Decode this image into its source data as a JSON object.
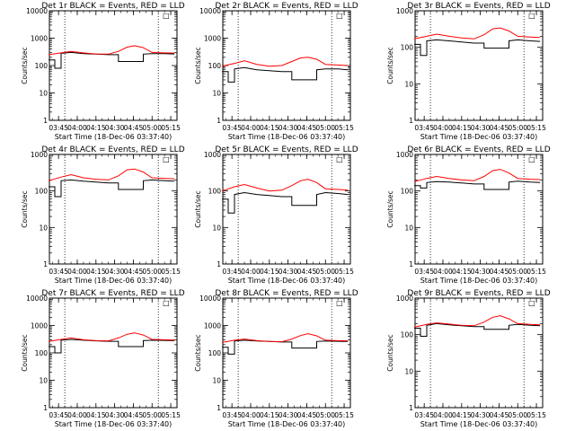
{
  "chart_data": [
    {
      "type": "line",
      "title": "Det 1r BLACK = Events, RED = LLD",
      "xlabel": "Start Time (18-Dec-06 03:37:40)",
      "ylabel": "Counts/sec",
      "y_scale": "log",
      "ylim": [
        1,
        10000
      ],
      "x_ticks": [
        "03:45",
        "04:00",
        "04:15",
        "04:30",
        "04:45",
        "05:00",
        "05:15"
      ],
      "y_ticks": [
        "1",
        "10",
        "100",
        "1000",
        "10000"
      ],
      "xlim": [
        "03:37:40",
        "05:20:00"
      ],
      "vlines": [
        "03:50",
        "05:05"
      ],
      "corner_mark": "□",
      "series": [
        {
          "name": "Events",
          "color": "#000000",
          "x": [
            "03:37",
            "03:42",
            "03:42",
            "03:47",
            "03:47",
            "03:55",
            "04:05",
            "04:15",
            "04:25",
            "04:33",
            "04:33",
            "04:45",
            "04:53",
            "04:53",
            "05:00",
            "05:10",
            "05:18"
          ],
          "values": [
            160,
            160,
            80,
            80,
            280,
            300,
            270,
            260,
            250,
            250,
            140,
            140,
            140,
            260,
            270,
            270,
            265
          ]
        },
        {
          "name": "LLD",
          "color": "#ff0000",
          "x": [
            "03:37",
            "03:47",
            "03:55",
            "04:05",
            "04:15",
            "04:25",
            "04:33",
            "04:40",
            "04:46",
            "04:53",
            "05:00",
            "05:10",
            "05:18"
          ],
          "values": [
            250,
            290,
            330,
            290,
            265,
            260,
            330,
            470,
            530,
            450,
            300,
            290,
            285
          ]
        }
      ]
    },
    {
      "type": "line",
      "title": "Det 2r BLACK = Events, RED = LLD",
      "xlabel": "Start Time (18-Dec-06 03:37:40)",
      "ylabel": "Counts/sec",
      "y_scale": "log",
      "ylim": [
        1,
        10000
      ],
      "x_ticks": [
        "03:45",
        "04:00",
        "04:15",
        "04:30",
        "04:45",
        "05:00",
        "05:15"
      ],
      "y_ticks": [
        "1",
        "10",
        "100",
        "1000",
        "10000"
      ],
      "xlim": [
        "03:37:40",
        "05:20:00"
      ],
      "vlines": [
        "03:50",
        "05:05"
      ],
      "corner_mark": "□",
      "series": [
        {
          "name": "Events",
          "color": "#000000",
          "x": [
            "03:37",
            "03:42",
            "03:42",
            "03:47",
            "03:47",
            "03:55",
            "04:05",
            "04:15",
            "04:25",
            "04:33",
            "04:33",
            "04:45",
            "04:53",
            "04:53",
            "05:00",
            "05:10",
            "05:18"
          ],
          "values": [
            60,
            60,
            25,
            25,
            75,
            85,
            70,
            65,
            60,
            60,
            30,
            30,
            30,
            70,
            75,
            75,
            70
          ]
        },
        {
          "name": "LLD",
          "color": "#ff0000",
          "x": [
            "03:37",
            "03:47",
            "03:55",
            "04:05",
            "04:15",
            "04:25",
            "04:33",
            "04:40",
            "04:46",
            "04:53",
            "05:00",
            "05:10",
            "05:18"
          ],
          "values": [
            95,
            120,
            150,
            110,
            95,
            100,
            140,
            190,
            200,
            170,
            110,
            105,
            100
          ]
        }
      ]
    },
    {
      "type": "line",
      "title": "Det 3r BLACK = Events, RED = LLD",
      "xlabel": "Start Time (18-Dec-06 03:37:40)",
      "ylabel": "Counts/sec",
      "y_scale": "log",
      "ylim": [
        1,
        1000
      ],
      "x_ticks": [
        "03:45",
        "04:00",
        "04:15",
        "04:30",
        "04:45",
        "05:00",
        "05:15"
      ],
      "y_ticks": [
        "1",
        "10",
        "100",
        "1000"
      ],
      "xlim": [
        "03:37:40",
        "05:20:00"
      ],
      "vlines": [
        "03:50",
        "05:05"
      ],
      "corner_mark": "□",
      "series": [
        {
          "name": "Events",
          "color": "#000000",
          "x": [
            "03:37",
            "03:42",
            "03:42",
            "03:47",
            "03:47",
            "03:55",
            "04:05",
            "04:15",
            "04:25",
            "04:33",
            "04:33",
            "04:45",
            "04:53",
            "04:53",
            "05:00",
            "05:10",
            "05:18"
          ],
          "values": [
            120,
            120,
            60,
            60,
            150,
            160,
            150,
            140,
            130,
            130,
            95,
            95,
            95,
            150,
            160,
            150,
            145
          ]
        },
        {
          "name": "LLD",
          "color": "#ff0000",
          "x": [
            "03:37",
            "03:47",
            "03:55",
            "04:05",
            "04:15",
            "04:25",
            "04:33",
            "04:40",
            "04:46",
            "04:53",
            "05:00",
            "05:10",
            "05:18"
          ],
          "values": [
            170,
            200,
            230,
            200,
            180,
            170,
            220,
            320,
            340,
            280,
            200,
            190,
            185
          ]
        }
      ]
    },
    {
      "type": "line",
      "title": "Det 4r BLACK = Events, RED = LLD",
      "xlabel": "Start Time (18-Dec-06 03:37:40)",
      "ylabel": "Counts/sec",
      "y_scale": "log",
      "ylim": [
        1,
        1000
      ],
      "x_ticks": [
        "03:45",
        "04:00",
        "04:15",
        "04:30",
        "04:45",
        "05:00",
        "05:15"
      ],
      "y_ticks": [
        "1",
        "10",
        "100",
        "1000"
      ],
      "xlim": [
        "03:37:40",
        "05:20:00"
      ],
      "vlines": [
        "03:50",
        "05:05"
      ],
      "corner_mark": "□",
      "series": [
        {
          "name": "Events",
          "color": "#000000",
          "x": [
            "03:37",
            "03:42",
            "03:42",
            "03:47",
            "03:47",
            "03:55",
            "04:05",
            "04:15",
            "04:25",
            "04:33",
            "04:33",
            "04:45",
            "04:53",
            "04:53",
            "05:00",
            "05:10",
            "05:18"
          ],
          "values": [
            130,
            130,
            70,
            70,
            190,
            200,
            185,
            175,
            165,
            165,
            110,
            110,
            110,
            190,
            200,
            190,
            185
          ]
        },
        {
          "name": "LLD",
          "color": "#ff0000",
          "x": [
            "03:37",
            "03:47",
            "03:55",
            "04:05",
            "04:15",
            "04:25",
            "04:33",
            "04:40",
            "04:46",
            "04:53",
            "05:00",
            "05:10",
            "05:18"
          ],
          "values": [
            190,
            240,
            280,
            230,
            210,
            200,
            260,
            380,
            400,
            330,
            230,
            220,
            215
          ]
        }
      ]
    },
    {
      "type": "line",
      "title": "Det 5r BLACK = Events, RED = LLD",
      "xlabel": "Start Time (18-Dec-06 03:37:40)",
      "ylabel": "Counts/sec",
      "y_scale": "log",
      "ylim": [
        1,
        1000
      ],
      "x_ticks": [
        "03:45",
        "04:00",
        "04:15",
        "04:30",
        "04:45",
        "05:00",
        "05:15"
      ],
      "y_ticks": [
        "1",
        "10",
        "100",
        "1000"
      ],
      "xlim": [
        "03:37:40",
        "05:20:00"
      ],
      "vlines": [
        "03:50",
        "05:05"
      ],
      "corner_mark": "□",
      "series": [
        {
          "name": "Events",
          "color": "#000000",
          "x": [
            "03:37",
            "03:42",
            "03:42",
            "03:47",
            "03:47",
            "03:55",
            "04:05",
            "04:15",
            "04:25",
            "04:33",
            "04:33",
            "04:45",
            "04:53",
            "04:53",
            "05:00",
            "05:10",
            "05:18"
          ],
          "values": [
            60,
            60,
            25,
            25,
            80,
            90,
            80,
            75,
            70,
            70,
            40,
            40,
            40,
            80,
            90,
            85,
            80
          ]
        },
        {
          "name": "LLD",
          "color": "#ff0000",
          "x": [
            "03:37",
            "03:47",
            "03:55",
            "04:05",
            "04:15",
            "04:25",
            "04:33",
            "04:40",
            "04:46",
            "04:53",
            "05:00",
            "05:10",
            "05:18"
          ],
          "values": [
            100,
            130,
            150,
            120,
            100,
            105,
            140,
            190,
            210,
            170,
            115,
            110,
            105
          ]
        }
      ]
    },
    {
      "type": "line",
      "title": "Det 6r BLACK = Events, RED = LLD",
      "xlabel": "Start Time (18-Dec-06 03:37:40)",
      "ylabel": "Counts/sec",
      "y_scale": "log",
      "ylim": [
        1,
        1000
      ],
      "x_ticks": [
        "03:45",
        "04:00",
        "04:15",
        "04:30",
        "04:45",
        "05:00",
        "05:15"
      ],
      "y_ticks": [
        "1",
        "10",
        "100",
        "1000"
      ],
      "xlim": [
        "03:37:40",
        "05:20:00"
      ],
      "vlines": [
        "03:50",
        "05:05"
      ],
      "corner_mark": "□",
      "series": [
        {
          "name": "Events",
          "color": "#000000",
          "x": [
            "03:37",
            "03:42",
            "03:42",
            "03:47",
            "03:47",
            "03:55",
            "04:05",
            "04:15",
            "04:25",
            "04:33",
            "04:33",
            "04:45",
            "04:53",
            "04:53",
            "05:00",
            "05:10",
            "05:18"
          ],
          "values": [
            140,
            140,
            120,
            120,
            170,
            180,
            175,
            165,
            155,
            155,
            110,
            110,
            110,
            175,
            185,
            175,
            170
          ]
        },
        {
          "name": "LLD",
          "color": "#ff0000",
          "x": [
            "03:37",
            "03:47",
            "03:55",
            "04:05",
            "04:15",
            "04:25",
            "04:33",
            "04:40",
            "04:46",
            "04:53",
            "05:00",
            "05:10",
            "05:18"
          ],
          "values": [
            180,
            220,
            250,
            220,
            200,
            190,
            250,
            360,
            390,
            310,
            220,
            210,
            205
          ]
        }
      ]
    },
    {
      "type": "line",
      "title": "Det 7r BLACK = Events, RED = LLD",
      "xlabel": "Start Time (18-Dec-06 03:37:40)",
      "ylabel": "Counts/sec",
      "y_scale": "log",
      "ylim": [
        1,
        10000
      ],
      "x_ticks": [
        "03:45",
        "04:00",
        "04:15",
        "04:30",
        "04:45",
        "05:00",
        "05:15"
      ],
      "y_ticks": [
        "1",
        "10",
        "100",
        "1000",
        "10000"
      ],
      "xlim": [
        "03:37:40",
        "05:20:00"
      ],
      "vlines": [
        "03:50",
        "05:05"
      ],
      "corner_mark": "□",
      "series": [
        {
          "name": "Events",
          "color": "#000000",
          "x": [
            "03:37",
            "03:42",
            "03:42",
            "03:47",
            "03:47",
            "03:55",
            "04:05",
            "04:15",
            "04:25",
            "04:33",
            "04:33",
            "04:45",
            "04:53",
            "04:53",
            "05:00",
            "05:10",
            "05:18"
          ],
          "values": [
            170,
            170,
            100,
            100,
            290,
            310,
            290,
            275,
            265,
            265,
            170,
            170,
            170,
            280,
            290,
            285,
            280
          ]
        },
        {
          "name": "LLD",
          "color": "#ff0000",
          "x": [
            "03:37",
            "03:47",
            "03:55",
            "04:05",
            "04:15",
            "04:25",
            "04:33",
            "04:40",
            "04:46",
            "04:53",
            "05:00",
            "05:10",
            "05:18"
          ],
          "values": [
            260,
            310,
            350,
            300,
            280,
            275,
            350,
            480,
            540,
            450,
            310,
            300,
            295
          ]
        }
      ]
    },
    {
      "type": "line",
      "title": "Det 8r BLACK = Events, RED = LLD",
      "xlabel": "Start Time (18-Dec-06 03:37:40)",
      "ylabel": "Counts/sec",
      "y_scale": "log",
      "ylim": [
        1,
        10000
      ],
      "x_ticks": [
        "03:45",
        "04:00",
        "04:15",
        "04:30",
        "04:45",
        "05:00",
        "05:15"
      ],
      "y_ticks": [
        "1",
        "10",
        "100",
        "1000",
        "10000"
      ],
      "xlim": [
        "03:37:40",
        "05:20:00"
      ],
      "vlines": [
        "03:50",
        "05:05"
      ],
      "corner_mark": "□",
      "series": [
        {
          "name": "Events",
          "color": "#000000",
          "x": [
            "03:37",
            "03:42",
            "03:42",
            "03:47",
            "03:47",
            "03:55",
            "04:05",
            "04:15",
            "04:25",
            "04:33",
            "04:33",
            "04:45",
            "04:53",
            "04:53",
            "05:00",
            "05:10",
            "05:18"
          ],
          "values": [
            160,
            160,
            90,
            90,
            270,
            290,
            270,
            260,
            250,
            250,
            150,
            150,
            150,
            260,
            270,
            265,
            260
          ]
        },
        {
          "name": "LLD",
          "color": "#ff0000",
          "x": [
            "03:37",
            "03:47",
            "03:55",
            "04:05",
            "04:15",
            "04:25",
            "04:33",
            "04:40",
            "04:46",
            "04:53",
            "05:00",
            "05:10",
            "05:18"
          ],
          "values": [
            240,
            290,
            320,
            280,
            260,
            255,
            320,
            430,
            500,
            420,
            290,
            280,
            275
          ]
        }
      ]
    },
    {
      "type": "line",
      "title": "Det 9r BLACK = Events, RED = LLD",
      "xlabel": "Start Time (18-Dec-06 03:37:40)",
      "ylabel": "Counts/sec",
      "y_scale": "log",
      "ylim": [
        1,
        1000
      ],
      "x_ticks": [
        "03:45",
        "04:00",
        "04:15",
        "04:30",
        "04:45",
        "05:00",
        "05:15"
      ],
      "y_ticks": [
        "1",
        "10",
        "100",
        "1000"
      ],
      "xlim": [
        "03:37:40",
        "05:20:00"
      ],
      "vlines": [
        "03:50",
        "05:05"
      ],
      "corner_mark": "□",
      "series": [
        {
          "name": "Events",
          "color": "#000000",
          "x": [
            "03:37",
            "03:42",
            "03:42",
            "03:47",
            "03:47",
            "03:55",
            "04:05",
            "04:15",
            "04:25",
            "04:33",
            "04:33",
            "04:45",
            "04:53",
            "04:53",
            "05:00",
            "05:10",
            "05:18"
          ],
          "values": [
            150,
            150,
            90,
            90,
            180,
            200,
            185,
            175,
            165,
            165,
            140,
            140,
            140,
            180,
            190,
            180,
            175
          ]
        },
        {
          "name": "LLD",
          "color": "#ff0000",
          "x": [
            "03:37",
            "03:47",
            "03:55",
            "04:05",
            "04:15",
            "04:25",
            "04:33",
            "04:40",
            "04:46",
            "04:53",
            "05:00",
            "05:10",
            "05:18"
          ],
          "values": [
            160,
            190,
            210,
            195,
            180,
            175,
            220,
            300,
            330,
            270,
            200,
            190,
            185
          ]
        }
      ]
    }
  ]
}
